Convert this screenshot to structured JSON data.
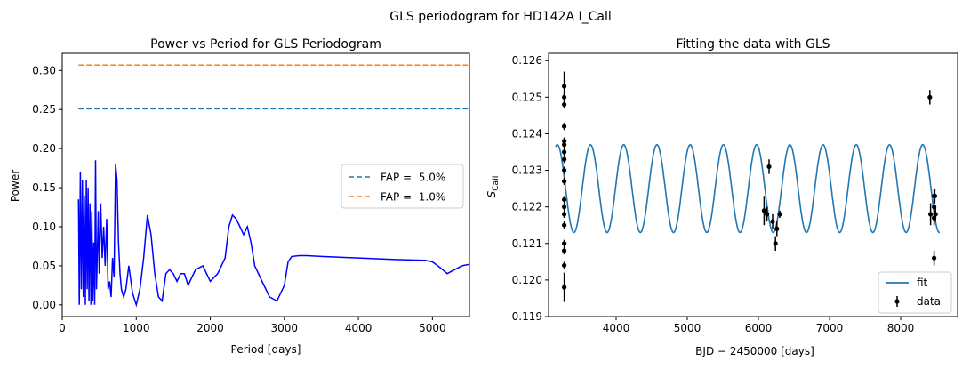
{
  "figure": {
    "suptitle": "GLS periodogram for HD142A I_Call"
  },
  "chart_data": [
    {
      "type": "line",
      "title": "Power vs Period for GLS Periodogram",
      "xlabel": "Period [days]",
      "ylabel": "Power",
      "xlim": [
        0,
        5500
      ],
      "ylim": [
        -0.015,
        0.322
      ],
      "xticks": [
        0,
        1000,
        2000,
        3000,
        4000,
        5000
      ],
      "yticks": [
        0.0,
        0.05,
        0.1,
        0.15,
        0.2,
        0.25,
        0.3
      ],
      "grid": false,
      "legend_position": "center-right",
      "series": [
        {
          "name": "",
          "color": "#0000ff",
          "style": "solid",
          "x": [
            220,
            230,
            245,
            258,
            272,
            285,
            298,
            312,
            325,
            338,
            350,
            362,
            375,
            388,
            400,
            412,
            425,
            438,
            450,
            462,
            475,
            488,
            500,
            520,
            540,
            560,
            580,
            600,
            620,
            640,
            660,
            680,
            700,
            720,
            740,
            760,
            780,
            800,
            830,
            860,
            900,
            950,
            1000,
            1050,
            1100,
            1150,
            1200,
            1250,
            1300,
            1350,
            1400,
            1450,
            1500,
            1550,
            1600,
            1650,
            1700,
            1750,
            1800,
            1900,
            2000,
            2100,
            2200,
            2250,
            2300,
            2350,
            2400,
            2450,
            2500,
            2550,
            2600,
            2700,
            2800,
            2900,
            3000,
            3050,
            3100,
            3200,
            3300,
            3500,
            4000,
            4500,
            4900,
            5000,
            5100,
            5200,
            5300,
            5400,
            5500
          ],
          "y": [
            0.135,
            0.0,
            0.17,
            0.02,
            0.16,
            0.01,
            0.14,
            0.0,
            0.16,
            0.02,
            0.15,
            0.005,
            0.13,
            0.0,
            0.12,
            0.005,
            0.08,
            0.0,
            0.185,
            0.02,
            0.07,
            0.12,
            0.04,
            0.13,
            0.06,
            0.1,
            0.05,
            0.11,
            0.02,
            0.03,
            0.01,
            0.06,
            0.035,
            0.18,
            0.16,
            0.08,
            0.04,
            0.02,
            0.01,
            0.02,
            0.05,
            0.015,
            0.0,
            0.02,
            0.06,
            0.115,
            0.09,
            0.04,
            0.01,
            0.005,
            0.04,
            0.045,
            0.04,
            0.03,
            0.04,
            0.04,
            0.025,
            0.035,
            0.045,
            0.05,
            0.03,
            0.04,
            0.06,
            0.1,
            0.115,
            0.11,
            0.1,
            0.09,
            0.1,
            0.08,
            0.05,
            0.03,
            0.01,
            0.005,
            0.025,
            0.055,
            0.062,
            0.063,
            0.063,
            0.062,
            0.06,
            0.058,
            0.057,
            0.055,
            0.048,
            0.04,
            0.045,
            0.05,
            0.052
          ]
        },
        {
          "name": "FAP =  5.0%",
          "color": "#1f77b4",
          "style": "dashed",
          "x": [
            220,
            5500
          ],
          "y": [
            0.251,
            0.251
          ]
        },
        {
          "name": "FAP =  1.0%",
          "color": "#ff7f0e",
          "style": "dashed",
          "x": [
            220,
            5500
          ],
          "y": [
            0.307,
            0.307
          ]
        }
      ]
    },
    {
      "type": "line",
      "title": "Fitting the data with GLS",
      "xlabel": "BJD − 2450000 [days]",
      "ylabel_main": "S",
      "ylabel_sub": "CaII",
      "xlim": [
        3050,
        8800
      ],
      "ylim": [
        0.119,
        0.1262
      ],
      "xticks": [
        4000,
        5000,
        6000,
        7000,
        8000
      ],
      "yticks": [
        0.119,
        0.12,
        0.121,
        0.122,
        0.123,
        0.124,
        0.125,
        0.126
      ],
      "grid": false,
      "legend_position": "lower-right",
      "fit": {
        "name": "fit",
        "color": "#1f77b4",
        "mean": 0.1225,
        "amplitude": 0.0012,
        "period": 467,
        "peak_x": 3640,
        "x_range": [
          3150,
          8550
        ]
      },
      "data": {
        "name": "data",
        "color": "#000000",
        "points": [
          {
            "x": 3270,
            "y": 0.1253,
            "err": 0.0004
          },
          {
            "x": 3270,
            "y": 0.125,
            "err": 0.0001
          },
          {
            "x": 3270,
            "y": 0.1248,
            "err": 0.0001
          },
          {
            "x": 3270,
            "y": 0.1242,
            "err": 0.0001
          },
          {
            "x": 3270,
            "y": 0.1238,
            "err": 0.0001
          },
          {
            "x": 3270,
            "y": 0.1237,
            "err": 0.0001
          },
          {
            "x": 3270,
            "y": 0.1235,
            "err": 0.0001
          },
          {
            "x": 3270,
            "y": 0.1233,
            "err": 0.0001
          },
          {
            "x": 3270,
            "y": 0.123,
            "err": 0.0001
          },
          {
            "x": 3270,
            "y": 0.1227,
            "err": 0.0001
          },
          {
            "x": 3270,
            "y": 0.1222,
            "err": 0.0001
          },
          {
            "x": 3270,
            "y": 0.122,
            "err": 0.0001
          },
          {
            "x": 3270,
            "y": 0.1218,
            "err": 0.0001
          },
          {
            "x": 3270,
            "y": 0.1215,
            "err": 0.0001
          },
          {
            "x": 3270,
            "y": 0.121,
            "err": 0.0001
          },
          {
            "x": 3270,
            "y": 0.1208,
            "err": 0.0001
          },
          {
            "x": 3270,
            "y": 0.1204,
            "err": 0.0001
          },
          {
            "x": 3270,
            "y": 0.1198,
            "err": 0.0004
          },
          {
            "x": 6080,
            "y": 0.1219,
            "err": 0.0004
          },
          {
            "x": 6120,
            "y": 0.1218,
            "err": 0.0002
          },
          {
            "x": 6150,
            "y": 0.1231,
            "err": 0.0002
          },
          {
            "x": 6200,
            "y": 0.1216,
            "err": 0.0002
          },
          {
            "x": 6240,
            "y": 0.121,
            "err": 0.0002
          },
          {
            "x": 6260,
            "y": 0.1214,
            "err": 0.0002
          },
          {
            "x": 6300,
            "y": 0.1218,
            "err": 0.0001
          },
          {
            "x": 8410,
            "y": 0.125,
            "err": 0.0002
          },
          {
            "x": 8420,
            "y": 0.1218,
            "err": 0.0003
          },
          {
            "x": 8470,
            "y": 0.1223,
            "err": 0.0002
          },
          {
            "x": 8470,
            "y": 0.122,
            "err": 0.0002
          },
          {
            "x": 8470,
            "y": 0.1217,
            "err": 0.0002
          },
          {
            "x": 8470,
            "y": 0.1206,
            "err": 0.0002
          },
          {
            "x": 8480,
            "y": 0.1223,
            "err": 0.0002
          },
          {
            "x": 8490,
            "y": 0.1218,
            "err": 0.0002
          }
        ]
      }
    }
  ]
}
